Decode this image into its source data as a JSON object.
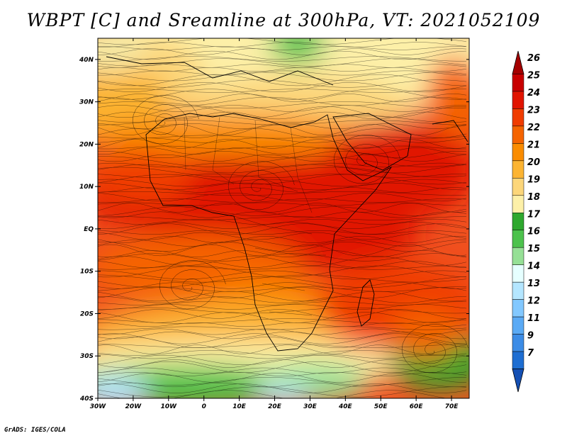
{
  "title": "WBPT [C] and Sreamline at 300hPa, VT: 2021052109",
  "credit": "GrADS: IGES/COLA",
  "map": {
    "lat_ticks": [
      "40N",
      "30N",
      "20N",
      "10N",
      "EQ",
      "10S",
      "20S",
      "30S",
      "40S"
    ],
    "lon_ticks": [
      "30W",
      "20W",
      "10W",
      "0",
      "10E",
      "20E",
      "30E",
      "40E",
      "50E",
      "60E",
      "70E"
    ],
    "lat_range": [
      -40,
      45
    ],
    "lon_range": [
      -30,
      75
    ]
  },
  "colorbar": {
    "labels": [
      "26",
      "25",
      "24",
      "23",
      "22",
      "21",
      "20",
      "19",
      "18",
      "17",
      "16",
      "15",
      "14",
      "13",
      "12",
      "11",
      "9",
      "7"
    ],
    "colors": [
      "#a50000",
      "#c80000",
      "#e11400",
      "#f03c00",
      "#f56400",
      "#fa8c00",
      "#fcb432",
      "#fcd67a",
      "#fdf0a8",
      "#2ea82e",
      "#4cc24c",
      "#96e096",
      "#e6ffff",
      "#b4e6ff",
      "#82c8ff",
      "#5aaaf5",
      "#3c8ce6",
      "#1e6ed2",
      "#1450b4"
    ]
  }
}
